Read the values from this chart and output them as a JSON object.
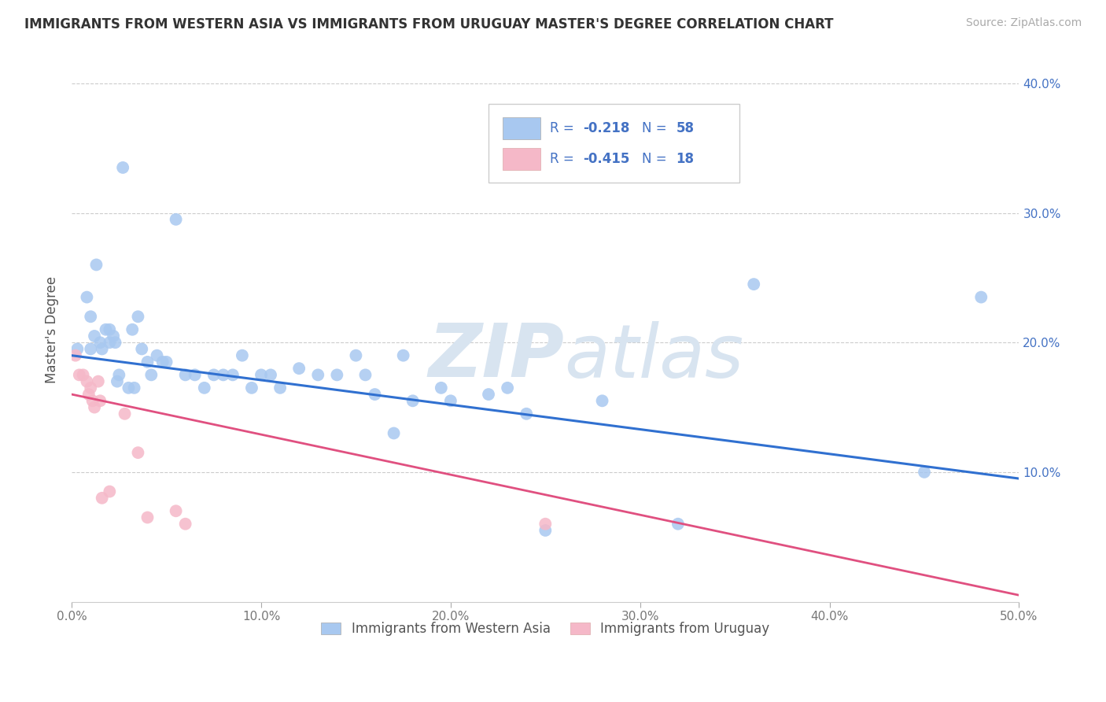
{
  "title": "IMMIGRANTS FROM WESTERN ASIA VS IMMIGRANTS FROM URUGUAY MASTER'S DEGREE CORRELATION CHART",
  "source": "Source: ZipAtlas.com",
  "ylabel": "Master's Degree",
  "xlim": [
    0.0,
    0.5
  ],
  "ylim": [
    0.0,
    0.42
  ],
  "xticks": [
    0.0,
    0.1,
    0.2,
    0.3,
    0.4,
    0.5
  ],
  "yticks": [
    0.1,
    0.2,
    0.3,
    0.4
  ],
  "xticklabels": [
    "0.0%",
    "10.0%",
    "20.0%",
    "30.0%",
    "40.0%",
    "50.0%"
  ],
  "yticklabels": [
    "10.0%",
    "20.0%",
    "30.0%",
    "40.0%"
  ],
  "legend1_label": "Immigrants from Western Asia",
  "legend2_label": "Immigrants from Uruguay",
  "R1": "-0.218",
  "N1": "58",
  "R2": "-0.415",
  "N2": "18",
  "color_blue": "#a8c8f0",
  "color_pink": "#f5b8c8",
  "line_blue": "#3070d0",
  "line_pink": "#e05080",
  "text_color_blue": "#4472c4",
  "watermark_color": "#d8e4f0",
  "blue_x": [
    0.003,
    0.008,
    0.01,
    0.01,
    0.012,
    0.013,
    0.015,
    0.016,
    0.018,
    0.02,
    0.02,
    0.022,
    0.023,
    0.024,
    0.025,
    0.027,
    0.03,
    0.032,
    0.033,
    0.035,
    0.037,
    0.04,
    0.042,
    0.045,
    0.048,
    0.05,
    0.055,
    0.06,
    0.065,
    0.07,
    0.075,
    0.08,
    0.085,
    0.09,
    0.095,
    0.1,
    0.105,
    0.11,
    0.12,
    0.13,
    0.14,
    0.15,
    0.155,
    0.16,
    0.17,
    0.175,
    0.18,
    0.195,
    0.2,
    0.22,
    0.23,
    0.24,
    0.25,
    0.28,
    0.32,
    0.36,
    0.45,
    0.48
  ],
  "blue_y": [
    0.195,
    0.235,
    0.22,
    0.195,
    0.205,
    0.26,
    0.2,
    0.195,
    0.21,
    0.21,
    0.2,
    0.205,
    0.2,
    0.17,
    0.175,
    0.335,
    0.165,
    0.21,
    0.165,
    0.22,
    0.195,
    0.185,
    0.175,
    0.19,
    0.185,
    0.185,
    0.295,
    0.175,
    0.175,
    0.165,
    0.175,
    0.175,
    0.175,
    0.19,
    0.165,
    0.175,
    0.175,
    0.165,
    0.18,
    0.175,
    0.175,
    0.19,
    0.175,
    0.16,
    0.13,
    0.19,
    0.155,
    0.165,
    0.155,
    0.16,
    0.165,
    0.145,
    0.055,
    0.155,
    0.06,
    0.245,
    0.1,
    0.235
  ],
  "pink_x": [
    0.002,
    0.004,
    0.006,
    0.008,
    0.009,
    0.01,
    0.011,
    0.012,
    0.014,
    0.015,
    0.016,
    0.02,
    0.028,
    0.035,
    0.04,
    0.055,
    0.06,
    0.25
  ],
  "pink_y": [
    0.19,
    0.175,
    0.175,
    0.17,
    0.16,
    0.165,
    0.155,
    0.15,
    0.17,
    0.155,
    0.08,
    0.085,
    0.145,
    0.115,
    0.065,
    0.07,
    0.06,
    0.06
  ],
  "blue_line_x": [
    0.0,
    0.5
  ],
  "blue_line_y": [
    0.19,
    0.095
  ],
  "pink_line_x": [
    0.0,
    0.5
  ],
  "pink_line_y": [
    0.16,
    0.005
  ],
  "figsize": [
    14.06,
    8.92
  ],
  "dpi": 100
}
